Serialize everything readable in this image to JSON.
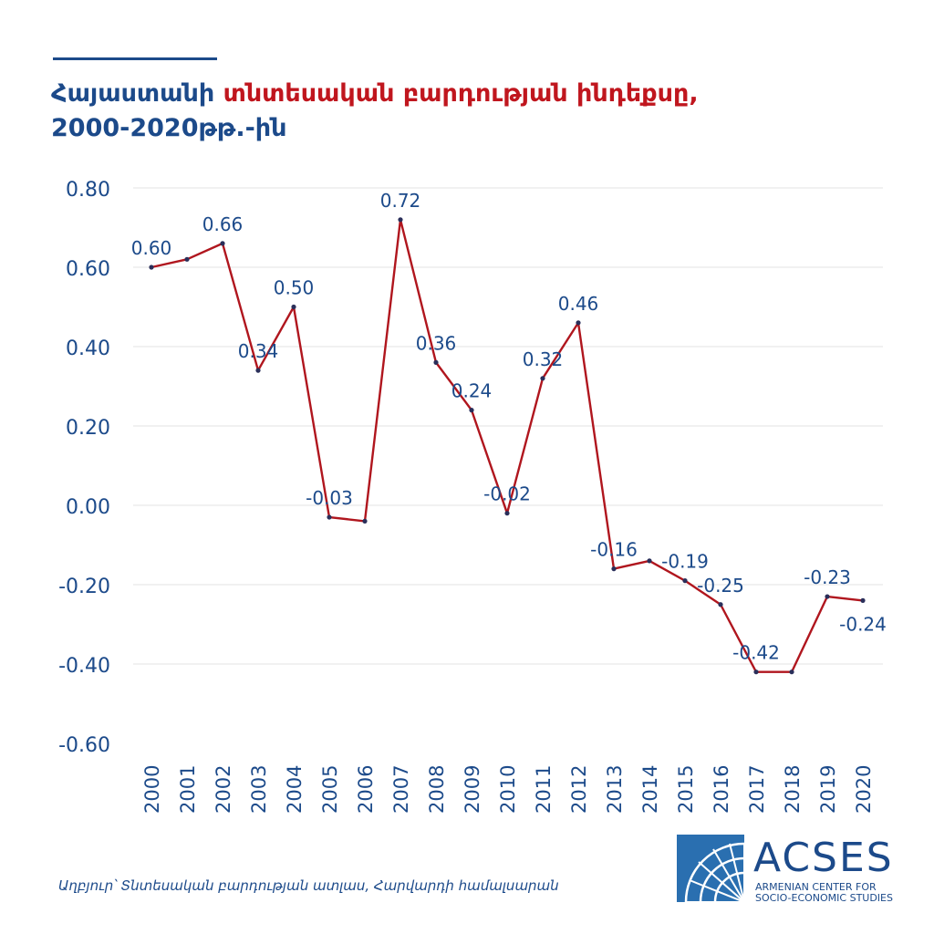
{
  "header": {
    "title_part1": "Հայաստանի ",
    "title_part2": "տնտեսական բարդության ինդեքսը,",
    "title_line2": "2000-2020թթ.-ին"
  },
  "colors": {
    "title": "#1c4a8a",
    "accent": "#c0161e",
    "line": "#b0161e",
    "marker": "#2a2f5a",
    "grid": "#e3e3e3"
  },
  "chart_data": {
    "type": "line",
    "categories": [
      "2000",
      "2001",
      "2002",
      "2003",
      "2004",
      "2005",
      "2006",
      "2007",
      "2008",
      "2009",
      "2010",
      "2011",
      "2012",
      "2013",
      "2014",
      "2015",
      "2016",
      "2017",
      "2018",
      "2019",
      "2020"
    ],
    "values": [
      0.6,
      0.62,
      0.66,
      0.34,
      0.5,
      -0.03,
      -0.04,
      0.72,
      0.36,
      0.24,
      -0.02,
      0.32,
      0.46,
      -0.16,
      -0.14,
      -0.19,
      -0.25,
      -0.42,
      -0.42,
      -0.23,
      -0.24
    ],
    "data_labels": [
      "0.60",
      null,
      "0.66",
      "0.34",
      "0.50",
      "-0.03",
      null,
      "0.72",
      "0.36",
      "0.24",
      "-0.02",
      "0.32",
      "0.46",
      "-0.16",
      null,
      "-0.19",
      "-0.25",
      "-0.42",
      null,
      "-0.23",
      "-0.24"
    ],
    "y_ticks": [
      "0.80",
      "0.60",
      "0.40",
      "0.20",
      "0.00",
      "-0.20",
      "-0.40",
      "-0.60"
    ],
    "ylim": [
      -0.6,
      0.8
    ],
    "grid": true,
    "legend": "none"
  },
  "footer": {
    "source": "Աղբյուր՝ Տնտեսական բարդության ատլաս, Հարվարդի համալսարան",
    "logo_name": "ACSES",
    "logo_sub_line1": "ARMENIAN CENTER FOR",
    "logo_sub_line2": "SOCIO-ECONOMIC STUDIES"
  }
}
